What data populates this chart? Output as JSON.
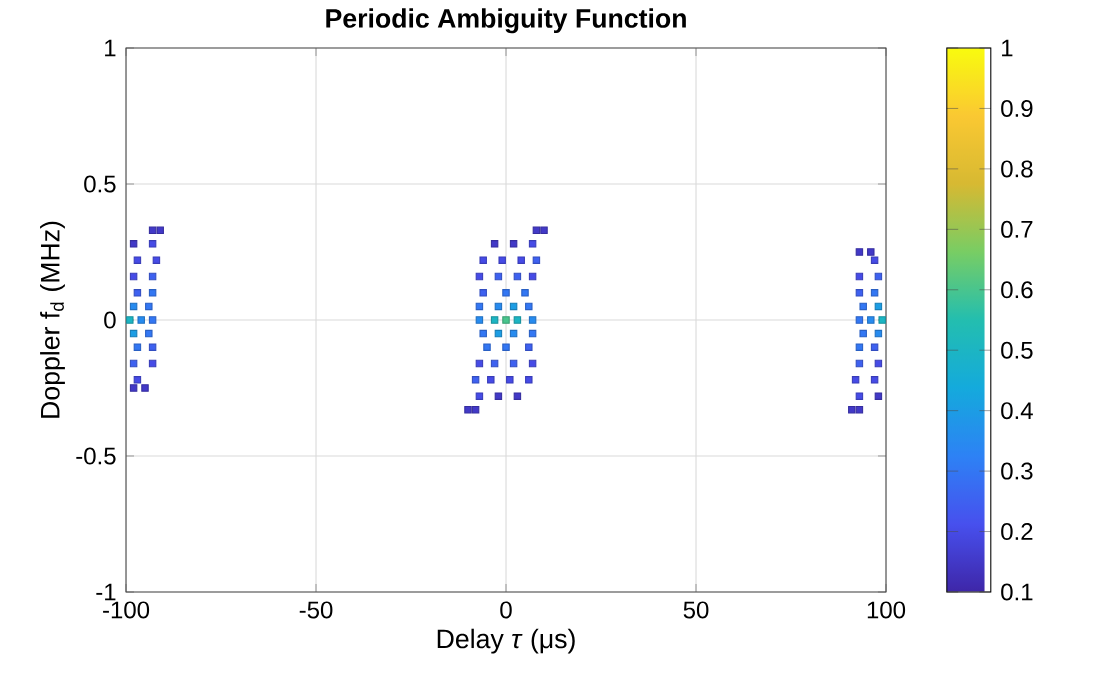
{
  "chart_data": {
    "type": "scatter",
    "title": "Periodic Ambiguity Function",
    "xlabel": "Delay *τ* (μs)",
    "ylabel": "Doppler f$_{d}$ (MHz)",
    "xlim": [
      -100,
      100
    ],
    "xticks": [
      -100,
      -50,
      0,
      50,
      100
    ],
    "ylim": [
      -1,
      1
    ],
    "yticks": [
      -1,
      -0.5,
      0,
      0.5,
      1
    ],
    "clim": [
      0.1,
      1
    ],
    "cticks": [
      0.1,
      0.2,
      0.3,
      0.4,
      0.5,
      0.6,
      0.7,
      0.8,
      0.9,
      1
    ],
    "grid": true,
    "marker": "square",
    "x": [
      8,
      10,
      -3,
      2,
      7,
      -6,
      -1,
      4,
      8,
      -7,
      -2,
      3,
      7,
      -6,
      0,
      5,
      -7,
      -2,
      2,
      6,
      -7,
      -3,
      0,
      3,
      7,
      -6,
      -2,
      2,
      7,
      -5,
      0,
      6,
      -7,
      -3,
      2,
      7,
      -8,
      -4,
      1,
      6,
      -7,
      -2,
      3,
      -10,
      -8,
      -93,
      -91,
      -98,
      -93,
      -97,
      -92,
      -98,
      -93,
      -97,
      -93,
      -98,
      -94,
      -99,
      -96,
      -93,
      -98,
      -94,
      -97,
      -93,
      -98,
      -93,
      -97,
      -98,
      -95,
      93,
      96,
      97,
      93,
      98,
      93,
      97,
      94,
      98,
      93,
      96,
      99,
      94,
      98,
      93,
      97,
      93,
      98,
      92,
      97,
      93,
      98,
      91,
      93
    ],
    "values": [
      0.33,
      0.33,
      0.28,
      0.28,
      0.28,
      0.22,
      0.22,
      0.22,
      0.22,
      0.16,
      0.16,
      0.16,
      0.16,
      0.1,
      0.1,
      0.1,
      0.05,
      0.05,
      0.05,
      0.05,
      0,
      0,
      0,
      0,
      0,
      -0.05,
      -0.05,
      -0.05,
      -0.05,
      -0.1,
      -0.1,
      -0.1,
      -0.16,
      -0.16,
      -0.16,
      -0.16,
      -0.22,
      -0.22,
      -0.22,
      -0.22,
      -0.28,
      -0.28,
      -0.28,
      -0.33,
      -0.33,
      0.33,
      0.33,
      0.28,
      0.28,
      0.22,
      0.22,
      0.16,
      0.16,
      0.1,
      0.1,
      0.05,
      0.05,
      0,
      0,
      0,
      -0.05,
      -0.05,
      -0.1,
      -0.1,
      -0.16,
      -0.16,
      -0.22,
      -0.25,
      -0.25,
      0.25,
      0.25,
      0.22,
      0.16,
      0.16,
      0.1,
      0.1,
      0.05,
      0.05,
      0,
      0,
      0,
      -0.05,
      -0.05,
      -0.1,
      -0.1,
      -0.16,
      -0.16,
      -0.22,
      -0.22,
      -0.28,
      -0.28,
      -0.33,
      -0.33
    ],
    "cvalues": [
      0.15,
      0.15,
      0.15,
      0.15,
      0.2,
      0.2,
      0.2,
      0.2,
      0.25,
      0.2,
      0.25,
      0.25,
      0.2,
      0.25,
      0.3,
      0.3,
      0.3,
      0.35,
      0.4,
      0.3,
      0.35,
      0.5,
      0.6,
      0.5,
      0.35,
      0.3,
      0.4,
      0.35,
      0.3,
      0.3,
      0.3,
      0.25,
      0.2,
      0.25,
      0.25,
      0.2,
      0.25,
      0.2,
      0.2,
      0.2,
      0.2,
      0.15,
      0.15,
      0.15,
      0.15,
      0.15,
      0.15,
      0.15,
      0.2,
      0.2,
      0.2,
      0.2,
      0.25,
      0.25,
      0.3,
      0.35,
      0.3,
      0.5,
      0.35,
      0.3,
      0.4,
      0.3,
      0.3,
      0.25,
      0.25,
      0.2,
      0.2,
      0.15,
      0.15,
      0.15,
      0.15,
      0.2,
      0.2,
      0.25,
      0.25,
      0.3,
      0.3,
      0.4,
      0.3,
      0.35,
      0.5,
      0.3,
      0.35,
      0.3,
      0.25,
      0.25,
      0.2,
      0.2,
      0.2,
      0.2,
      0.15,
      0.15,
      0.15
    ]
  }
}
